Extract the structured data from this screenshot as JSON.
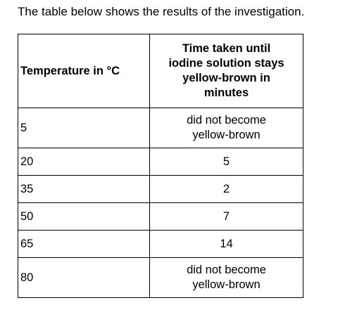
{
  "intro": "The table below shows the results of the investigation.",
  "table": {
    "headers": {
      "temperature": "Temperature in °C",
      "time_lines": [
        "Time taken until",
        "iodine solution stays",
        "yellow-brown in",
        "minutes"
      ]
    },
    "rows": [
      {
        "temperature": "5",
        "time_lines": [
          "did not become",
          "yellow-brown"
        ]
      },
      {
        "temperature": "20",
        "time_lines": [
          "5"
        ]
      },
      {
        "temperature": "35",
        "time_lines": [
          "2"
        ]
      },
      {
        "temperature": "50",
        "time_lines": [
          "7"
        ]
      },
      {
        "temperature": "65",
        "time_lines": [
          "14"
        ]
      },
      {
        "temperature": "80",
        "time_lines": [
          "did not become",
          "yellow-brown"
        ]
      }
    ]
  }
}
